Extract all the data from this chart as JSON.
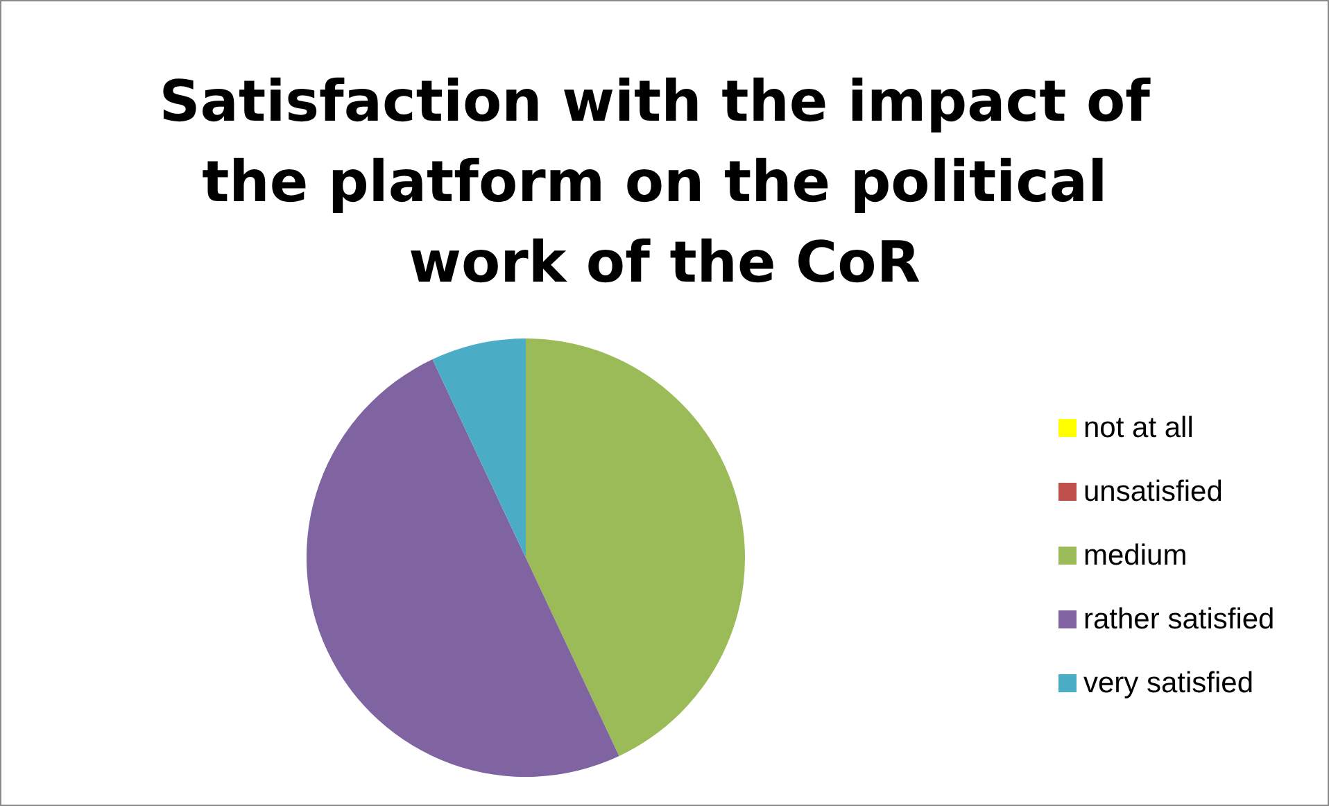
{
  "chart_data": {
    "type": "pie",
    "title": "Satisfaction with the impact of the platform on the political work of the CoR",
    "categories": [
      "not at all",
      "unsatisfied",
      "medium",
      "rather satisfied",
      "very satisfied"
    ],
    "values": [
      0,
      0,
      43,
      50,
      7
    ],
    "colors": [
      "#ffff00",
      "#c0504d",
      "#9bbb59",
      "#8064a2",
      "#4bacc6"
    ],
    "legend": "right"
  }
}
